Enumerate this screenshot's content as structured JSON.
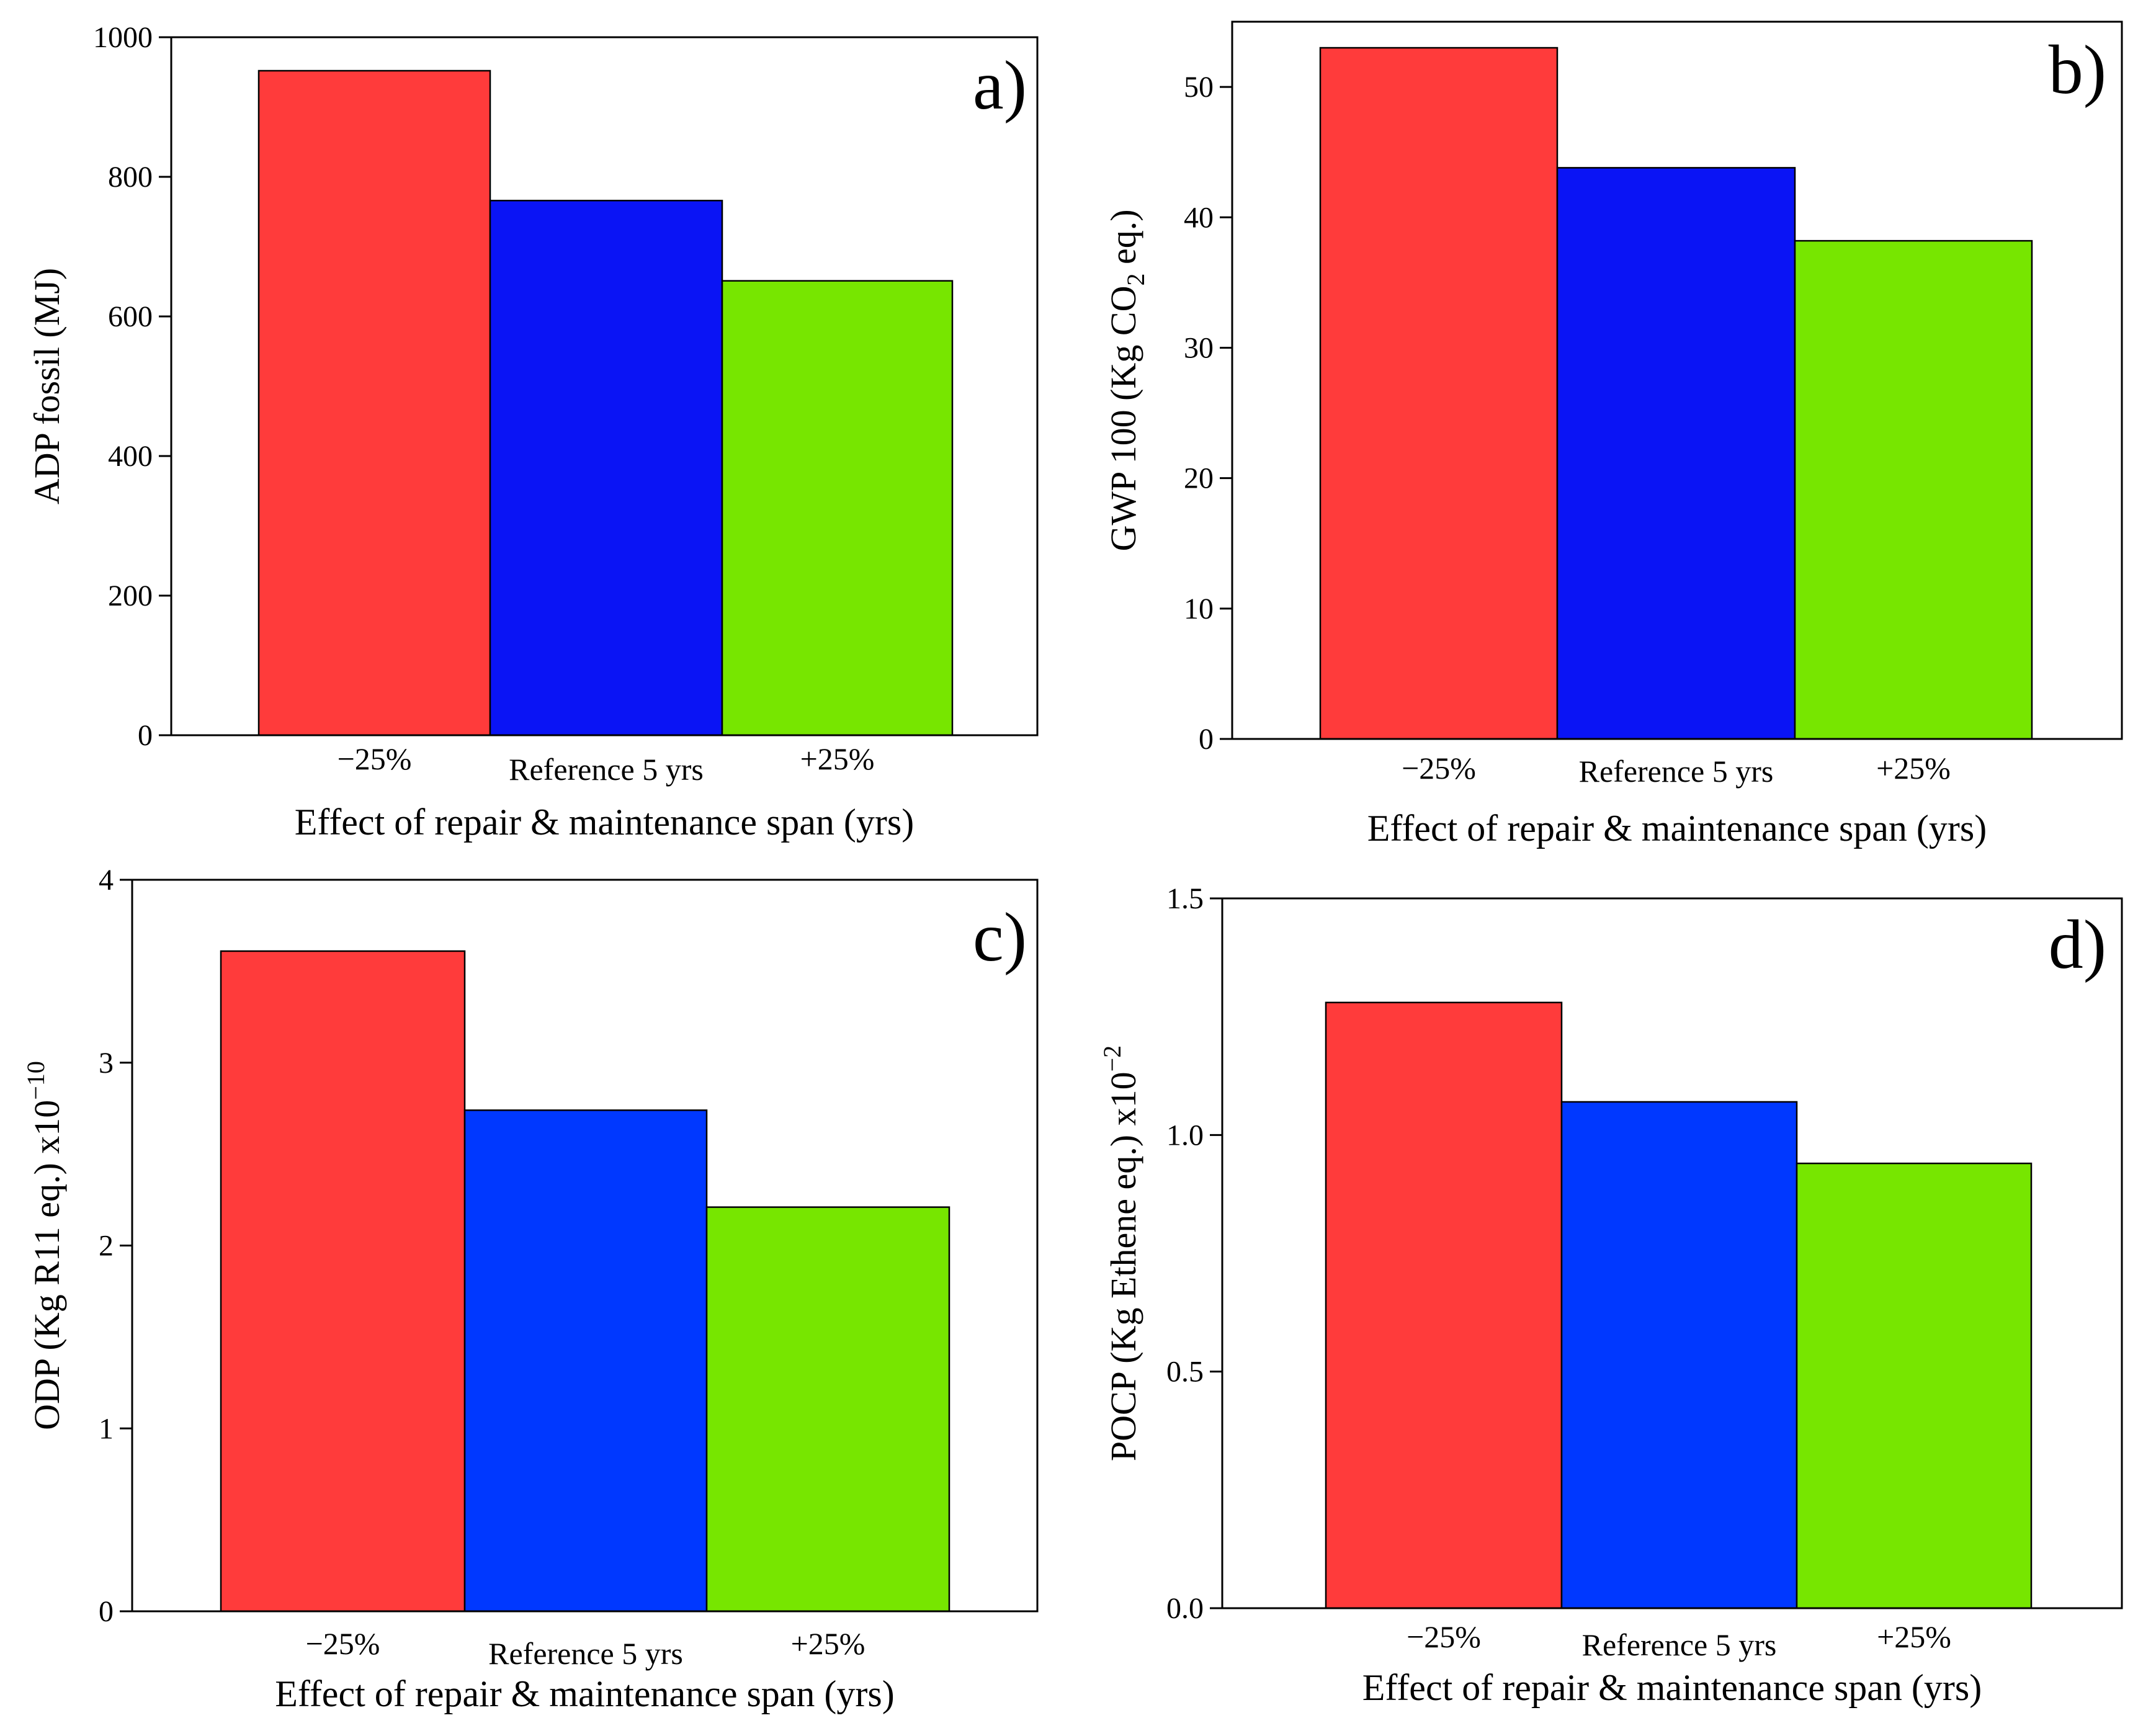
{
  "colors": {
    "red": "#ff3b3b",
    "blue": "#0a14f5",
    "blue_alt": "#0038ff",
    "green": "#77e600",
    "axis": "#000000"
  },
  "chart_data": [
    {
      "id": "a",
      "type": "bar",
      "panel_label": "a)",
      "title": "",
      "categories": [
        "−25%",
        "Reference 5 yrs",
        "+25%"
      ],
      "values": [
        952,
        766,
        651
      ],
      "xlabel": "Effect of repair & maintenance span (yrs)",
      "ylabel": "ADP fossil (MJ)",
      "ylabel_main": "ADP fossil (MJ)",
      "ylabel_sub": "",
      "ylabel_tail": "",
      "ylabel_sup": "",
      "ylim": [
        0,
        1000
      ],
      "yticks": [
        0,
        200,
        400,
        600,
        800,
        1000
      ],
      "ytick_labels": [
        "0",
        "200",
        "400",
        "600",
        "800",
        "1000"
      ],
      "bar_colors": [
        "#ff3b3b",
        "#0a14f5",
        "#77e600"
      ]
    },
    {
      "id": "b",
      "type": "bar",
      "panel_label": "b)",
      "title": "",
      "categories": [
        "−25%",
        "Reference 5 yrs",
        "+25%"
      ],
      "values": [
        53,
        43.8,
        38.2
      ],
      "xlabel": "Effect of repair & maintenance span (yrs)",
      "ylabel": "GWP 100 (Kg CO2 eq.)",
      "ylabel_main": "GWP 100 (Kg CO",
      "ylabel_sub": "2",
      "ylabel_tail": " eq.)",
      "ylabel_sup": "",
      "ylim": [
        0,
        55
      ],
      "yticks": [
        0,
        10,
        20,
        30,
        40,
        50
      ],
      "ytick_labels": [
        "0",
        "10",
        "20",
        "30",
        "40",
        "50"
      ],
      "bar_colors": [
        "#ff3b3b",
        "#0a14f5",
        "#77e600"
      ]
    },
    {
      "id": "c",
      "type": "bar",
      "panel_label": "c)",
      "title": "",
      "categories": [
        "−25%",
        "Reference 5 yrs",
        "+25%"
      ],
      "values": [
        3.61,
        2.74,
        2.21
      ],
      "xlabel": "Effect of repair & maintenance span (yrs)",
      "ylabel": "ODP (Kg R11 eq.) x10−10",
      "ylabel_main": "ODP (Kg R11 eq.) x10",
      "ylabel_sub": "",
      "ylabel_tail": "",
      "ylabel_sup": "−10",
      "ylim": [
        0,
        4
      ],
      "yticks": [
        0,
        1,
        2,
        3,
        4
      ],
      "ytick_labels": [
        "0",
        "1",
        "2",
        "3",
        "4"
      ],
      "bar_colors": [
        "#ff3b3b",
        "#0038ff",
        "#77e600"
      ]
    },
    {
      "id": "d",
      "type": "bar",
      "panel_label": "d)",
      "title": "",
      "categories": [
        "−25%",
        "Reference 5 yrs",
        "+25%"
      ],
      "values": [
        1.28,
        1.07,
        0.94
      ],
      "xlabel": "Effect of repair & maintenance span (yrs)",
      "ylabel": "POCP (Kg Ethene eq.) x10−2",
      "ylabel_main": "POCP (Kg Ethene eq.) x10",
      "ylabel_sub": "",
      "ylabel_tail": "",
      "ylabel_sup": "−2",
      "ylim": [
        0,
        1.5
      ],
      "yticks": [
        0,
        0.5,
        1.0,
        1.5
      ],
      "ytick_labels": [
        "0.0",
        "0.5",
        "1.0",
        "1.5"
      ],
      "bar_colors": [
        "#ff3b3b",
        "#0038ff",
        "#77e600"
      ]
    }
  ]
}
